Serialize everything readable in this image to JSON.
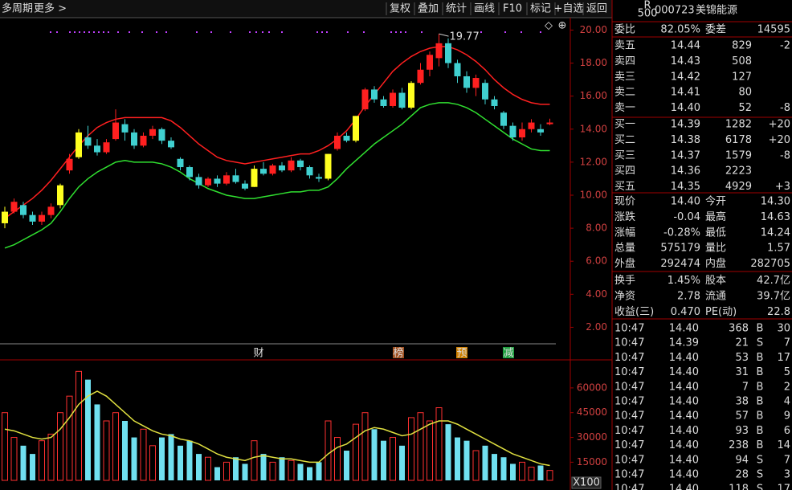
{
  "toolbar": {
    "left": [
      "多周期",
      "更多 >"
    ],
    "buttons": [
      "复权",
      "叠加",
      "统计",
      "画线",
      "F10",
      "标记",
      "+自选",
      "返回"
    ]
  },
  "chart_data": [
    {
      "type": "candlestick",
      "up_color": "#ff2020",
      "down_color": "#40d0d0",
      "limit_color": "#ffff20",
      "limit_up_indices": [
        0,
        6,
        8,
        27,
        35,
        38,
        44
      ],
      "open": [
        8.3,
        9.0,
        9.4,
        8.8,
        8.4,
        8.8,
        9.4,
        11.5,
        12.3,
        13.5,
        13.0,
        12.6,
        13.4,
        14.3,
        13.8,
        13.0,
        13.6,
        14.0,
        13.3,
        12.2,
        11.7,
        11.1,
        10.6,
        11.0,
        10.7,
        11.2,
        10.7,
        10.5,
        11.6,
        11.3,
        11.8,
        11.5,
        12.1,
        11.7,
        11.1,
        11.0,
        12.8,
        13.6,
        13.3,
        15.2,
        16.4,
        15.8,
        15.4,
        16.2,
        15.3,
        16.8,
        17.6,
        18.3,
        19.2,
        18.0,
        17.2,
        16.5,
        16.8,
        15.8,
        15.0,
        14.2,
        13.5,
        14.0,
        14.0,
        14.3
      ],
      "high": [
        9.3,
        9.8,
        9.6,
        9.0,
        9.0,
        9.5,
        10.7,
        12.5,
        14.0,
        14.2,
        13.4,
        13.4,
        15.2,
        14.6,
        14.0,
        13.8,
        14.2,
        14.1,
        13.5,
        12.3,
        11.8,
        11.3,
        11.1,
        11.2,
        11.4,
        11.6,
        10.9,
        11.8,
        12.0,
        11.9,
        12.0,
        12.3,
        12.2,
        11.8,
        11.3,
        12.5,
        13.8,
        13.8,
        14.8,
        16.5,
        16.6,
        16.0,
        16.4,
        16.5,
        16.9,
        18.0,
        18.7,
        19.77,
        19.5,
        18.2,
        17.5,
        17.3,
        17.0,
        16.0,
        15.1,
        14.4,
        14.4,
        14.6,
        14.3,
        14.63
      ],
      "low": [
        8.0,
        8.9,
        8.6,
        8.2,
        8.2,
        8.6,
        9.2,
        11.3,
        12.2,
        12.8,
        12.4,
        12.5,
        13.3,
        13.3,
        12.8,
        12.9,
        13.4,
        13.1,
        12.8,
        11.5,
        10.9,
        10.4,
        10.5,
        10.5,
        10.6,
        10.7,
        10.3,
        10.5,
        11.2,
        11.2,
        11.4,
        11.4,
        11.5,
        11.0,
        10.8,
        10.9,
        12.7,
        13.2,
        13.2,
        15.1,
        15.6,
        15.3,
        15.3,
        15.2,
        15.2,
        16.7,
        17.2,
        17.8,
        17.7,
        16.8,
        16.2,
        16.0,
        15.5,
        15.2,
        14.0,
        13.3,
        13.3,
        13.8,
        13.6,
        14.24
      ],
      "close": [
        9.0,
        9.6,
        8.8,
        8.4,
        8.8,
        9.3,
        10.6,
        12.2,
        13.8,
        13.0,
        12.6,
        13.2,
        14.4,
        13.8,
        13.0,
        13.6,
        14.0,
        13.3,
        12.9,
        11.7,
        11.1,
        10.6,
        11.0,
        10.7,
        11.2,
        10.8,
        10.4,
        11.6,
        11.3,
        11.8,
        11.5,
        12.1,
        11.7,
        11.2,
        11.0,
        12.5,
        13.6,
        13.3,
        14.8,
        16.4,
        15.8,
        15.4,
        16.2,
        15.3,
        16.8,
        17.6,
        18.5,
        19.2,
        18.0,
        17.2,
        16.5,
        17.1,
        15.8,
        15.4,
        14.2,
        13.5,
        14.0,
        14.4,
        13.8,
        14.4
      ],
      "lines": [
        {
          "color": "#ff2020",
          "values": [
            8.6,
            9.0,
            9.4,
            9.8,
            10.3,
            10.9,
            11.6,
            12.3,
            13.0,
            13.6,
            14.1,
            14.4,
            14.6,
            14.7,
            14.7,
            14.7,
            14.7,
            14.7,
            14.5,
            14.1,
            13.6,
            13.1,
            12.7,
            12.3,
            12.1,
            12.0,
            11.9,
            12.0,
            12.1,
            12.2,
            12.3,
            12.4,
            12.5,
            12.5,
            12.7,
            13.0,
            13.4,
            13.9,
            14.6,
            15.4,
            16.1,
            16.8,
            17.5,
            18.0,
            18.4,
            18.7,
            18.9,
            19.0,
            19.0,
            18.8,
            18.5,
            18.1,
            17.6,
            17.0,
            16.5,
            16.1,
            15.8,
            15.6,
            15.5,
            15.5
          ]
        },
        {
          "color": "#30e030",
          "values": [
            6.8,
            7.0,
            7.3,
            7.6,
            7.9,
            8.3,
            9.0,
            9.8,
            10.5,
            11.0,
            11.4,
            11.7,
            12.0,
            12.1,
            12.0,
            12.0,
            12.0,
            11.9,
            11.7,
            11.4,
            11.0,
            10.7,
            10.4,
            10.2,
            10.0,
            9.9,
            9.8,
            9.8,
            9.9,
            10.0,
            10.1,
            10.2,
            10.2,
            10.3,
            10.3,
            10.5,
            11.0,
            11.6,
            12.1,
            12.6,
            13.1,
            13.5,
            13.9,
            14.3,
            14.8,
            15.3,
            15.5,
            15.6,
            15.6,
            15.5,
            15.3,
            15.0,
            14.6,
            14.2,
            13.8,
            13.4,
            13.1,
            12.8,
            12.7,
            12.7
          ]
        }
      ],
      "annotation": "19.77",
      "ylim": [
        1,
        20.75
      ],
      "yticks": [
        {
          "value": 2,
          "label": "2.00"
        },
        {
          "value": 4,
          "label": "4.00"
        },
        {
          "value": 6,
          "label": "6.00"
        },
        {
          "value": 8,
          "label": "8.00"
        },
        {
          "value": 10,
          "label": "10.00"
        },
        {
          "value": 12,
          "label": "12.00"
        },
        {
          "value": 14,
          "label": "14.00"
        },
        {
          "value": 16,
          "label": "16.00"
        },
        {
          "value": 18,
          "label": "18.00"
        },
        {
          "value": 20,
          "label": "20.00"
        }
      ],
      "events": [
        {
          "label": "财",
          "color": "#4a90ff",
          "bg": "none"
        },
        {
          "label": "榜",
          "color": "#ffffff",
          "bg": "#a05020"
        },
        {
          "label": "预",
          "color": "#ffffff",
          "bg": "#d08000"
        },
        {
          "label": "减",
          "color": "#ffffff",
          "bg": "#20a040"
        }
      ]
    },
    {
      "type": "bar",
      "unit": "X100",
      "values": [
        45000,
        30000,
        25000,
        20000,
        28000,
        32000,
        45000,
        55000,
        70000,
        65000,
        50000,
        40000,
        45000,
        40000,
        30000,
        35000,
        25000,
        30000,
        32000,
        25000,
        28000,
        20000,
        18000,
        12000,
        15000,
        18000,
        14000,
        28000,
        20000,
        15000,
        18000,
        16000,
        14000,
        12000,
        15000,
        40000,
        30000,
        22000,
        38000,
        45000,
        35000,
        28000,
        30000,
        25000,
        42000,
        45000,
        40000,
        48000,
        38000,
        30000,
        28000,
        22000,
        25000,
        20000,
        18000,
        14000,
        15000,
        12000,
        13000,
        10000
      ],
      "lines": [
        {
          "color": "#e0e040",
          "values": [
            35000,
            34000,
            32000,
            30000,
            29000,
            30000,
            35000,
            42000,
            50000,
            55000,
            58000,
            55000,
            50000,
            45000,
            40000,
            37000,
            34000,
            32000,
            31000,
            29000,
            28000,
            26000,
            23000,
            20000,
            18000,
            17000,
            16000,
            18000,
            19000,
            18000,
            17000,
            17000,
            16000,
            15000,
            15000,
            20000,
            24000,
            26000,
            30000,
            34000,
            36000,
            35000,
            33000,
            31000,
            32000,
            35000,
            38000,
            40000,
            40000,
            38000,
            35000,
            32000,
            29000,
            26000,
            23000,
            20000,
            18000,
            16000,
            14000,
            13000
          ]
        }
      ],
      "ylim": [
        4000,
        76000
      ],
      "yticks": [
        15000,
        30000,
        45000,
        60000
      ]
    }
  ],
  "quote": {
    "badge": [
      "R",
      "500"
    ],
    "code": "000723",
    "name": "美锦能源",
    "ratio": {
      "label": "委比",
      "value": "82.05%",
      "label2": "委差",
      "value2": "14595",
      "color": "#ff3030"
    },
    "book": [
      {
        "label": "卖五",
        "price": "14.44",
        "vol": "829",
        "chg": "-2",
        "color": "#ffffff",
        "chg_color": "#00e000"
      },
      {
        "label": "卖四",
        "price": "14.43",
        "vol": "508",
        "color": "#00e000"
      },
      {
        "label": "卖三",
        "price": "14.42",
        "vol": "127",
        "color": "#00e000"
      },
      {
        "label": "卖二",
        "price": "14.41",
        "vol": "80",
        "color": "#00e000"
      },
      {
        "label": "卖一",
        "price": "14.40",
        "vol": "52",
        "chg": "-8",
        "color": "#00e000",
        "chg_color": "#00e000"
      },
      {
        "label": "买一",
        "price": "14.39",
        "vol": "1282",
        "chg": "+20",
        "color": "#00e000",
        "chg_color": "#ff3030"
      },
      {
        "label": "买二",
        "price": "14.38",
        "vol": "6178",
        "chg": "+20",
        "color": "#00e000",
        "chg_color": "#ff3030"
      },
      {
        "label": "买三",
        "price": "14.37",
        "vol": "1579",
        "chg": "-8",
        "color": "#00e000",
        "chg_color": "#00e000"
      },
      {
        "label": "买四",
        "price": "14.36",
        "vol": "2223",
        "color": "#00e000"
      },
      {
        "label": "买五",
        "price": "14.35",
        "vol": "4929",
        "chg": "+3",
        "color": "#00e000",
        "chg_color": "#ff3030"
      }
    ],
    "stats": [
      {
        "label": "现价",
        "value": "14.40",
        "color": "#00e000",
        "label2": "今开",
        "value2": "14.30",
        "color2": "#00e000"
      },
      {
        "label": "涨跌",
        "value": "-0.04",
        "color": "#00e000",
        "label2": "最高",
        "value2": "14.63",
        "color2": "#ff3030"
      },
      {
        "label": "涨幅",
        "value": "-0.28%",
        "color": "#00e000",
        "label2": "最低",
        "value2": "14.24",
        "color2": "#00e000"
      },
      {
        "label": "总量",
        "value": "575179",
        "color": "#ffff40",
        "label2": "量比",
        "value2": "1.57",
        "color2": "#ff3030"
      },
      {
        "label": "外盘",
        "value": "292474",
        "color": "#ff3030",
        "label2": "内盘",
        "value2": "282705",
        "color2": "#00e000"
      },
      {
        "label": "换手",
        "value": "1.45%",
        "color": "#ffffff",
        "label2": "股本",
        "value2": "42.7亿",
        "color2": "#ffffff"
      },
      {
        "label": "净资",
        "value": "2.78",
        "color": "#ffffff",
        "label2": "流通",
        "value2": "39.7亿",
        "color2": "#ffffff"
      },
      {
        "label": "收益(三)",
        "value": "0.470",
        "color": "#ffffff",
        "label2": "PE(动)",
        "value2": "22.8",
        "color2": "#ffffff"
      }
    ],
    "ticks": [
      {
        "time": "10:47",
        "price": "14.40",
        "vol": "368",
        "side": "B",
        "count": "30"
      },
      {
        "time": "10:47",
        "price": "14.39",
        "vol": "21",
        "side": "S",
        "count": "7"
      },
      {
        "time": "10:47",
        "price": "14.40",
        "vol": "53",
        "side": "B",
        "count": "17"
      },
      {
        "time": "10:47",
        "price": "14.40",
        "vol": "31",
        "side": "B",
        "count": "5"
      },
      {
        "time": "10:47",
        "price": "14.40",
        "vol": "7",
        "side": "B",
        "count": "2"
      },
      {
        "time": "10:47",
        "price": "14.40",
        "vol": "38",
        "side": "B",
        "count": "4"
      },
      {
        "time": "10:47",
        "price": "14.40",
        "vol": "57",
        "side": "B",
        "count": "9"
      },
      {
        "time": "10:47",
        "price": "14.40",
        "vol": "93",
        "side": "B",
        "count": "6"
      },
      {
        "time": "10:47",
        "price": "14.40",
        "vol": "238",
        "side": "B",
        "count": "14"
      },
      {
        "time": "10:47",
        "price": "14.40",
        "vol": "94",
        "side": "S",
        "count": "7"
      },
      {
        "time": "10:47",
        "price": "14.40",
        "vol": "28",
        "side": "S",
        "count": "3"
      },
      {
        "time": "10:47",
        "price": "14.40",
        "vol": "118",
        "side": "S",
        "count": "17"
      }
    ]
  }
}
